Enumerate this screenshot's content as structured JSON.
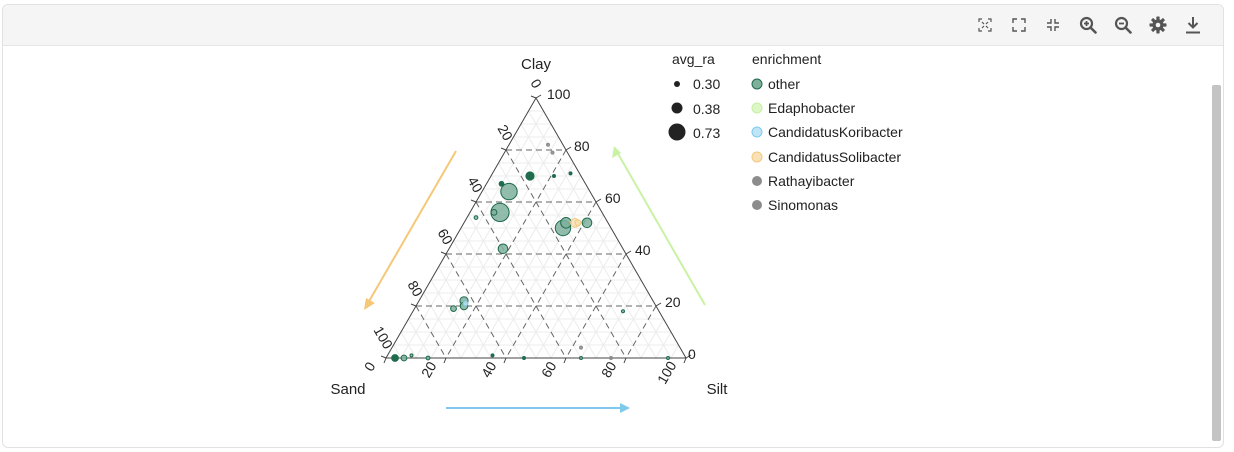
{
  "toolbar": {
    "buttons": [
      {
        "name": "reset-axes-icon"
      },
      {
        "name": "fullscreen-icon"
      },
      {
        "name": "exit-fullscreen-icon"
      },
      {
        "name": "zoom-in-icon"
      },
      {
        "name": "zoom-out-icon"
      },
      {
        "name": "settings-icon"
      },
      {
        "name": "download-icon"
      }
    ],
    "icon_color": "#555555"
  },
  "chart_data": {
    "type": "scatter",
    "subtype": "ternary",
    "axes": {
      "top": {
        "label": "Clay",
        "ticks": [
          0,
          20,
          40,
          60,
          80,
          100
        ]
      },
      "left": {
        "label": "Sand",
        "ticks": [
          0,
          20,
          40,
          60,
          80,
          100
        ]
      },
      "right": {
        "label": "Silt",
        "ticks": [
          0,
          20,
          40,
          60,
          80,
          100
        ]
      }
    },
    "clay_tick_labels": [
      "0",
      "20",
      "40",
      "60",
      "80",
      "100"
    ],
    "sand_tick_labels": [
      "0",
      "20",
      "40",
      "60",
      "80",
      "100"
    ],
    "silt_tick_labels": [
      "0",
      "20",
      "40",
      "60",
      "80",
      "100"
    ],
    "grid": true,
    "size_legend": {
      "title": "avg_ra",
      "entries": [
        {
          "label": "0.30",
          "value": 0.3
        },
        {
          "label": "0.38",
          "value": 0.38
        },
        {
          "label": "0.73",
          "value": 0.73
        }
      ]
    },
    "color_legend": {
      "title": "enrichment",
      "placement": "top-right",
      "entries": [
        {
          "label": "other",
          "color": "#1e6b4e",
          "fill": "#7fb09c"
        },
        {
          "label": "Edaphobacter",
          "color": "#c5f0a0",
          "fill": "#ddf6c5"
        },
        {
          "label": "CandidatusKoribacter",
          "color": "#7ecbee",
          "fill": "#bfe5f6"
        },
        {
          "label": "CandidatusSolibacter",
          "color": "#f3c97a",
          "fill": "#f8e1b6"
        },
        {
          "label": "Rathayibacter",
          "color": "#8c8c8c",
          "fill": "#8c8c8c"
        },
        {
          "label": "Sinomonas",
          "color": "#8c8c8c",
          "fill": "#8c8c8c"
        }
      ]
    },
    "arrows": [
      {
        "axis": "Clay",
        "color": "#c9f2a4"
      },
      {
        "axis": "Sand",
        "color": "#f5c878"
      },
      {
        "axis": "Silt",
        "color": "#7ec8ee"
      }
    ],
    "points": [
      {
        "clay": 70,
        "sand": 17,
        "silt": 13,
        "ra": 0.45,
        "group": "other",
        "solid": true
      },
      {
        "clay": 67,
        "sand": 28,
        "silt": 5,
        "ra": 0.38,
        "group": "other",
        "solid": true
      },
      {
        "clay": 64,
        "sand": 27,
        "silt": 9,
        "ra": 0.62,
        "group": "other"
      },
      {
        "clay": 56,
        "sand": 34,
        "silt": 10,
        "ra": 0.66,
        "group": "other"
      },
      {
        "clay": 56,
        "sand": 36,
        "silt": 8,
        "ra": 0.4,
        "group": "other"
      },
      {
        "clay": 54,
        "sand": 43,
        "silt": 3,
        "ra": 0.36,
        "group": "other"
      },
      {
        "clay": 42,
        "sand": 40,
        "silt": 18,
        "ra": 0.48,
        "group": "other"
      },
      {
        "clay": 22,
        "sand": 63,
        "silt": 15,
        "ra": 0.45,
        "group": "other"
      },
      {
        "clay": 20,
        "sand": 64,
        "silt": 16,
        "ra": 0.44,
        "group": "other"
      },
      {
        "clay": 21,
        "sand": 63,
        "silt": 16,
        "ra": 0.38,
        "group": "CandidatusKoribacter"
      },
      {
        "clay": 19,
        "sand": 68,
        "silt": 13,
        "ra": 0.4,
        "group": "other"
      },
      {
        "clay": 52,
        "sand": 14,
        "silt": 34,
        "ra": 0.5,
        "group": "other"
      },
      {
        "clay": 52,
        "sand": 11,
        "silt": 37,
        "ra": 0.46,
        "group": "CandidatusSolibacter"
      },
      {
        "clay": 52,
        "sand": 10,
        "silt": 38,
        "ra": 0.4,
        "group": "CandidatusSolibacter"
      },
      {
        "clay": 52,
        "sand": 7,
        "silt": 41,
        "ra": 0.48,
        "group": "other"
      },
      {
        "clay": 50,
        "sand": 16,
        "silt": 34,
        "ra": 0.6,
        "group": "other"
      },
      {
        "clay": 71,
        "sand": 3,
        "silt": 26,
        "ra": 0.3,
        "group": "other",
        "solid": true
      },
      {
        "clay": 70,
        "sand": 9,
        "silt": 21,
        "ra": 0.3,
        "group": "other",
        "solid": true
      },
      {
        "clay": 79,
        "sand": 5,
        "silt": 16,
        "ra": 0.3,
        "group": "Rathayibacter"
      },
      {
        "clay": 82,
        "sand": 5,
        "silt": 13,
        "ra": 0.3,
        "group": "Sinomonas"
      },
      {
        "clay": 18,
        "sand": 12,
        "silt": 70,
        "ra": 0.33,
        "group": "other"
      },
      {
        "clay": 0,
        "sand": 97,
        "silt": 3,
        "ra": 0.42,
        "group": "other",
        "solid": true
      },
      {
        "clay": 0,
        "sand": 94,
        "silt": 6,
        "ra": 0.4,
        "group": "other"
      },
      {
        "clay": 1,
        "sand": 91,
        "silt": 8,
        "ra": 0.34,
        "group": "other"
      },
      {
        "clay": 0,
        "sand": 86,
        "silt": 14,
        "ra": 0.36,
        "group": "other"
      },
      {
        "clay": 1,
        "sand": 64,
        "silt": 35,
        "ra": 0.3,
        "group": "other",
        "solid": true
      },
      {
        "clay": 0,
        "sand": 54,
        "silt": 46,
        "ra": 0.32,
        "group": "other",
        "solid": true
      },
      {
        "clay": 0,
        "sand": 35,
        "silt": 65,
        "ra": 0.32,
        "group": "other"
      },
      {
        "clay": 0,
        "sand": 25,
        "silt": 75,
        "ra": 0.3,
        "group": "Rathayibacter"
      },
      {
        "clay": 0,
        "sand": 6,
        "silt": 94,
        "ra": 0.32,
        "group": "other"
      },
      {
        "clay": 4,
        "sand": 33,
        "silt": 63,
        "ra": 0.3,
        "group": "Sinomonas"
      }
    ]
  }
}
